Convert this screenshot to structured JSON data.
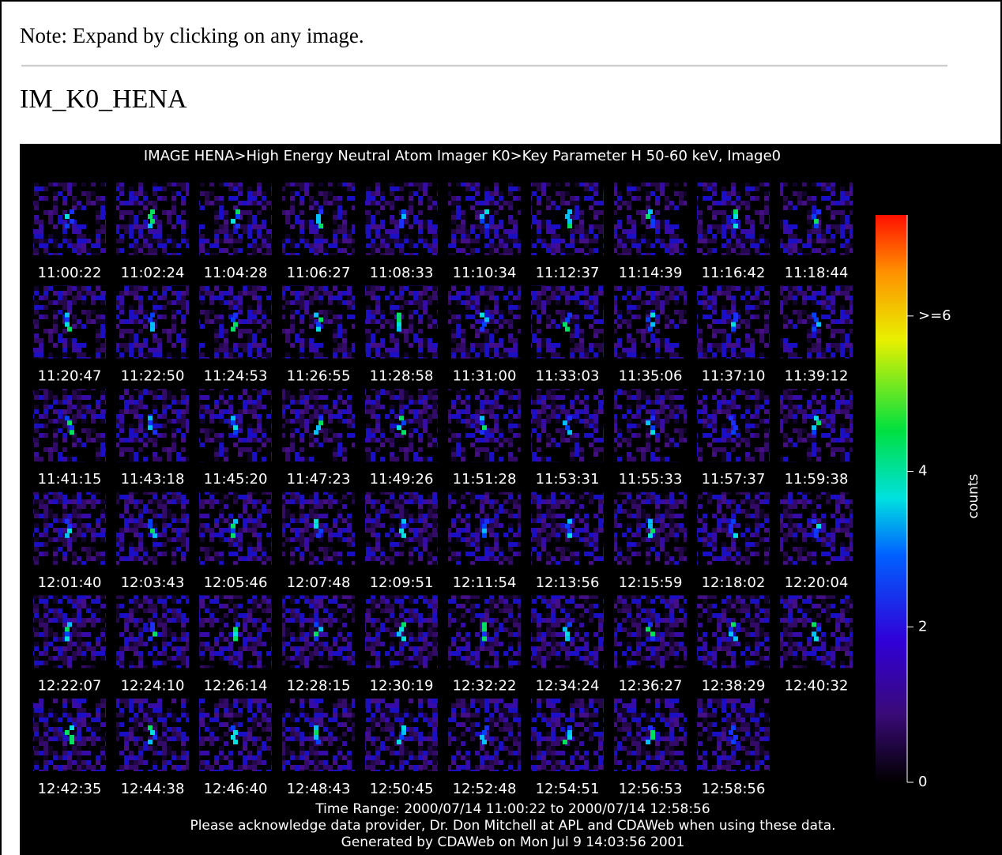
{
  "note": "Note: Expand by clicking on any image.",
  "heading": "IM_K0_HENA",
  "plot": {
    "title": "IMAGE  HENA>High Energy Neutral Atom Imager  K0>Key Parameter H 50-60 keV, Image0",
    "timestamps": [
      "11:00:22",
      "11:02:24",
      "11:04:28",
      "11:06:27",
      "11:08:33",
      "11:10:34",
      "11:12:37",
      "11:14:39",
      "11:16:42",
      "11:18:44",
      "11:20:47",
      "11:22:50",
      "11:24:53",
      "11:26:55",
      "11:28:58",
      "11:31:00",
      "11:33:03",
      "11:35:06",
      "11:37:10",
      "11:39:12",
      "11:41:15",
      "11:43:18",
      "11:45:20",
      "11:47:23",
      "11:49:26",
      "11:51:28",
      "11:53:31",
      "11:55:33",
      "11:57:37",
      "11:59:38",
      "12:01:40",
      "12:03:43",
      "12:05:46",
      "12:07:48",
      "12:09:51",
      "12:11:54",
      "12:13:56",
      "12:15:59",
      "12:18:02",
      "12:20:04",
      "12:22:07",
      "12:24:10",
      "12:26:14",
      "12:28:15",
      "12:30:19",
      "12:32:22",
      "12:34:24",
      "12:36:27",
      "12:38:29",
      "12:40:32",
      "12:42:35",
      "12:44:38",
      "12:46:40",
      "12:48:43",
      "12:50:45",
      "12:52:48",
      "12:54:51",
      "12:56:53",
      "12:58:56"
    ],
    "colorbar": {
      "label": "counts",
      "lim": [
        0,
        7.3
      ],
      "ticks": [
        0,
        2,
        4,
        {
          "value": 6,
          "label": ">=6"
        }
      ]
    },
    "footer": [
      "Time Range: 2000/07/14 11:00:22 to 2000/07/14 12:58:56",
      "Please acknowledge data provider, Dr. Don Mitchell at APL and CDAWeb when using these data.",
      "Generated by CDAWeb on Mon Jul  9 14:03:56 2001"
    ]
  }
}
